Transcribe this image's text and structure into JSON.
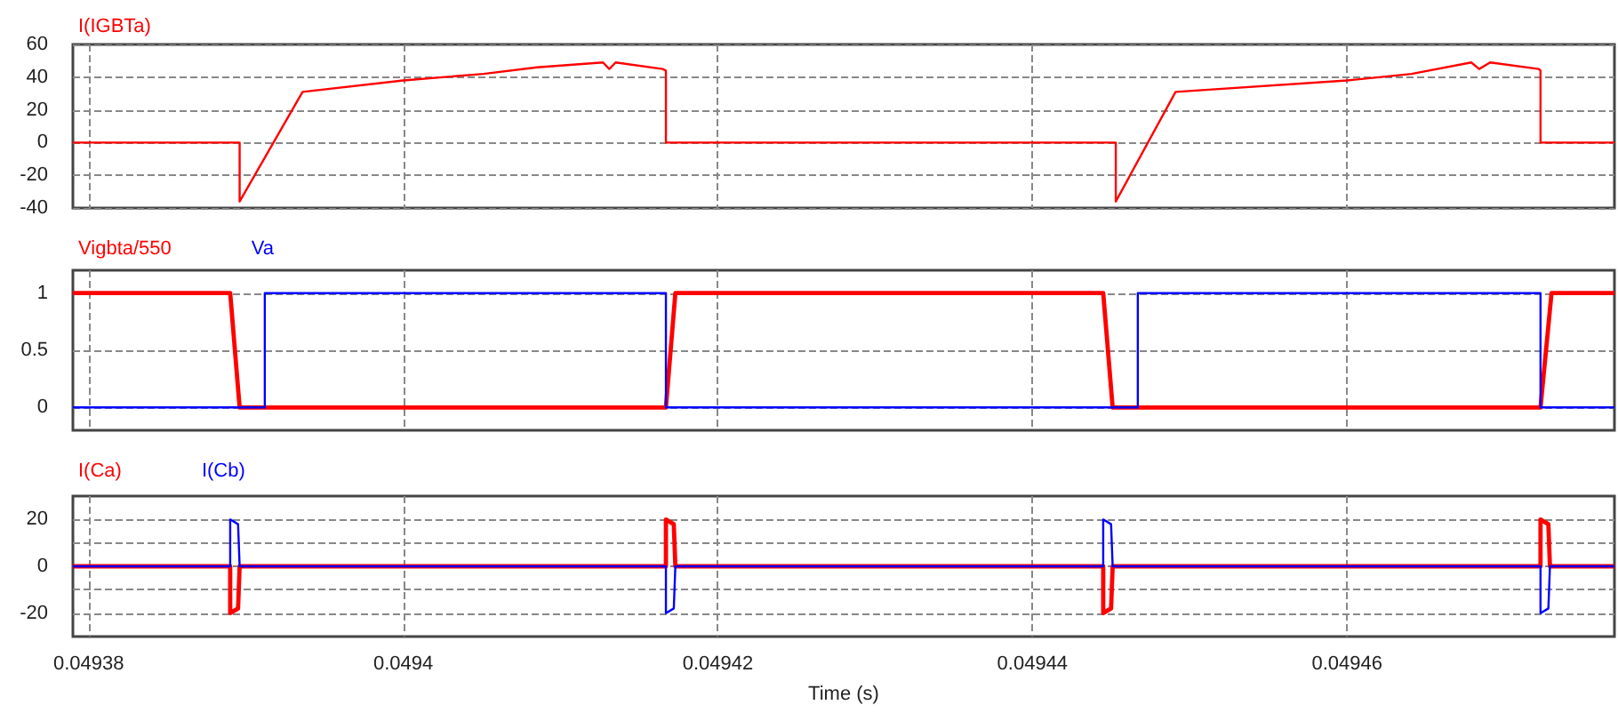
{
  "chart_data": [
    {
      "type": "line",
      "legend": "top left",
      "grid": true,
      "line_style": "solid",
      "tick_labels": "y",
      "xlim": [
        0.049379,
        0.049477
      ],
      "xticks": [
        0.04938,
        0.0494,
        0.04942,
        0.04944,
        0.04946
      ],
      "ylim": [
        -40,
        60
      ],
      "yticks": [
        -40,
        -20,
        0,
        20,
        40,
        60
      ],
      "series": [
        {
          "name": "I(IGBTa)",
          "color": "#ff0000",
          "x": [
            0.049379,
            0.0493896,
            0.0493896,
            0.0493936,
            0.0494,
            0.0494051,
            0.0494085,
            0.0494127,
            0.0494131,
            0.0494135,
            0.0494165,
            0.0494167,
            0.0494167,
            0.0494453,
            0.0494453,
            0.0494491,
            0.04946,
            0.0494641,
            0.0494679,
            0.0494684,
            0.0494691,
            0.0494722,
            0.0494723,
            0.0494723,
            0.049477
          ],
          "values": [
            0,
            0,
            -36,
            31,
            38,
            42,
            46,
            49,
            45,
            49,
            45,
            44,
            0,
            0,
            -36,
            31,
            38,
            42,
            49,
            45,
            49,
            45,
            44,
            0,
            0
          ]
        }
      ]
    },
    {
      "type": "line",
      "legend": "top left",
      "grid": true,
      "line_style": "solid",
      "tick_labels": "y",
      "xlim": [
        0.049379,
        0.049477
      ],
      "xticks": [
        0.04938,
        0.0494,
        0.04942,
        0.04944,
        0.04946
      ],
      "ylim": [
        -0.2,
        1.2
      ],
      "yticks": [
        0,
        0.5,
        1
      ],
      "series": [
        {
          "name": "Vigbta/550",
          "color": "#ff0000",
          "x": [
            0.049379,
            0.049389,
            0.0493896,
            0.0494167,
            0.0494173,
            0.0494445,
            0.0494451,
            0.0494723,
            0.049473,
            0.049477
          ],
          "values": [
            1,
            1,
            0,
            0,
            1,
            1,
            0,
            0,
            1,
            1
          ]
        },
        {
          "name": "Va",
          "color": "#0000ff",
          "x": [
            0.049379,
            0.0493912,
            0.0493912,
            0.0494167,
            0.0494167,
            0.0494467,
            0.0494467,
            0.0494723,
            0.0494723,
            0.049477
          ],
          "values": [
            0,
            0,
            1,
            1,
            0,
            0,
            1,
            1,
            0,
            0
          ]
        }
      ]
    },
    {
      "type": "line",
      "legend": "top left",
      "grid": true,
      "line_style": "solid",
      "xlabel": "Time (s)",
      "xlim": [
        0.049379,
        0.049477
      ],
      "xticks": [
        0.04938,
        0.0494,
        0.04942,
        0.04944,
        0.04946
      ],
      "ylim": [
        -30,
        30
      ],
      "yticks": [
        -20,
        {
          "value": -10,
          "label": null
        },
        0,
        {
          "value": 10,
          "label": null
        },
        20
      ],
      "series": [
        {
          "name": "I(Ca)",
          "color": "#ff0000",
          "x": [
            0.049379,
            0.049389,
            0.049389,
            0.0493895,
            0.0493896,
            0.0494167,
            0.0494167,
            0.0494172,
            0.0494173,
            0.0494445,
            0.0494445,
            0.049445,
            0.0494451,
            0.0494723,
            0.0494723,
            0.0494728,
            0.0494729,
            0.049477
          ],
          "values": [
            0,
            0,
            -20,
            -18,
            0,
            0,
            20,
            18,
            0,
            0,
            -20,
            -18,
            0,
            0,
            20,
            18,
            0,
            0
          ]
        },
        {
          "name": "I(Cb)",
          "color": "#0000ff",
          "x": [
            0.049379,
            0.049389,
            0.049389,
            0.0493895,
            0.0493896,
            0.0494167,
            0.0494167,
            0.0494172,
            0.0494173,
            0.0494445,
            0.0494445,
            0.049445,
            0.0494451,
            0.0494723,
            0.0494723,
            0.0494728,
            0.0494729,
            0.049477
          ],
          "values": [
            0,
            0,
            20,
            18,
            0,
            0,
            -20,
            -18,
            0,
            0,
            20,
            18,
            0,
            0,
            -20,
            -18,
            0,
            0
          ]
        }
      ]
    }
  ]
}
